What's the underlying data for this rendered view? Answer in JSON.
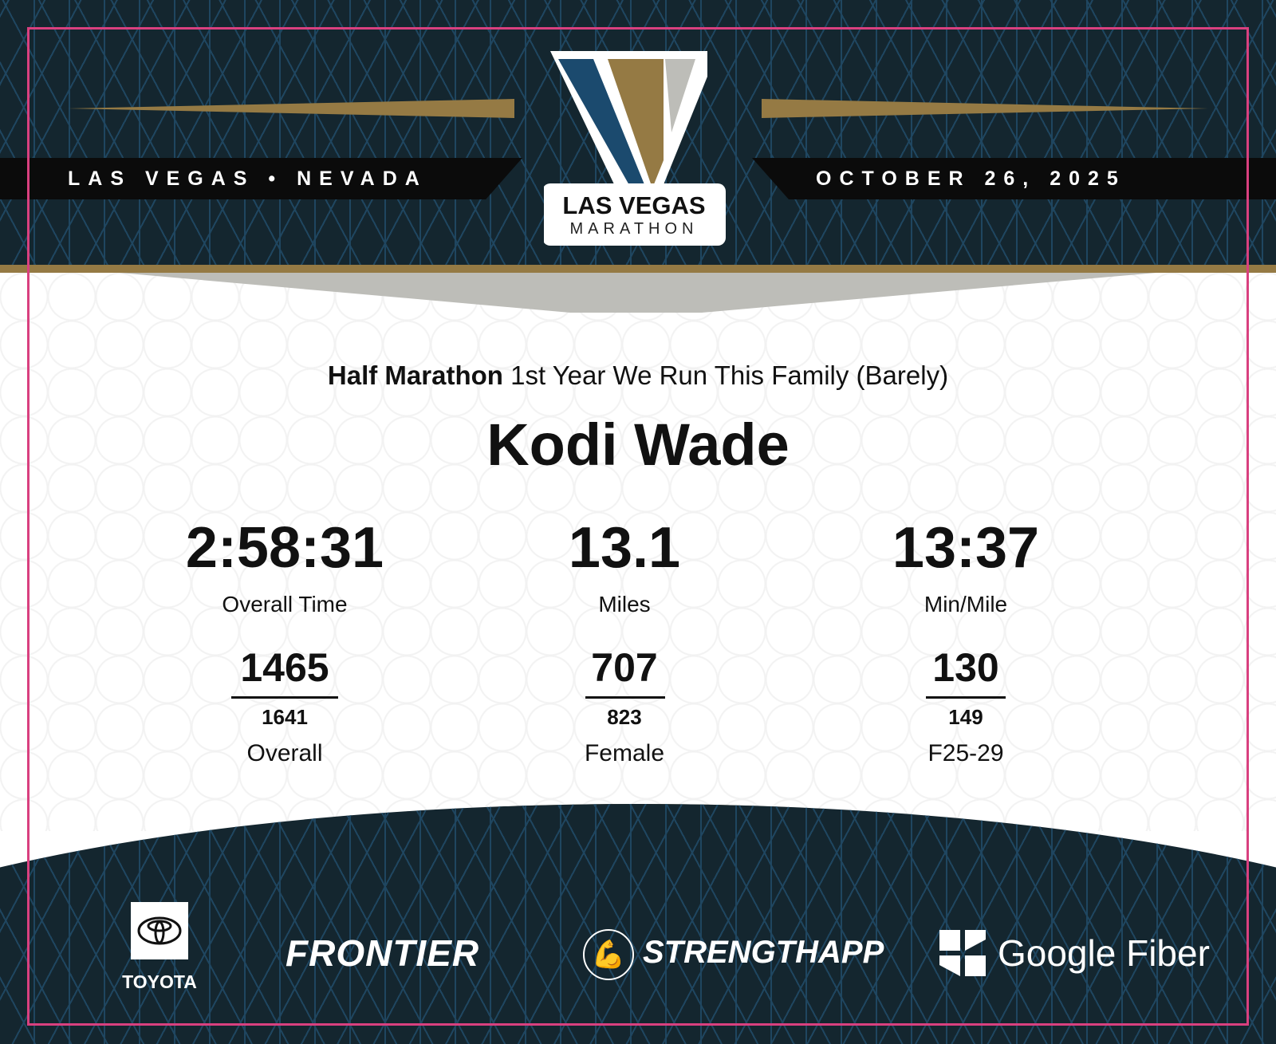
{
  "header": {
    "location": "LAS VEGAS • NEVADA",
    "date": "OCTOBER 26, 2025",
    "logo_text_1": "LAS VEGAS",
    "logo_text_2": "MARATHON"
  },
  "result": {
    "race": "Half Marathon",
    "team": "1st Year We Run This Family (Barely)",
    "name": "Kodi Wade",
    "stats": [
      {
        "value": "2:58:31",
        "label": "Overall Time"
      },
      {
        "value": "13.1",
        "label": "Miles"
      },
      {
        "value": "13:37",
        "label": "Min/Mile"
      }
    ],
    "ranks": [
      {
        "place": "1465",
        "total": "1641",
        "category": "Overall"
      },
      {
        "place": "707",
        "total": "823",
        "category": "Female"
      },
      {
        "place": "130",
        "total": "149",
        "category": "F25-29"
      }
    ]
  },
  "sponsors": [
    "TOYOTA",
    "FRONTIER",
    "STRENGTHAPP",
    "Google Fiber"
  ],
  "colors": {
    "navy": "#14262f",
    "gold": "#957a44",
    "border": "#d9407f",
    "logo_blue": "#1b4a6e",
    "gray": "#bdbdb8"
  }
}
